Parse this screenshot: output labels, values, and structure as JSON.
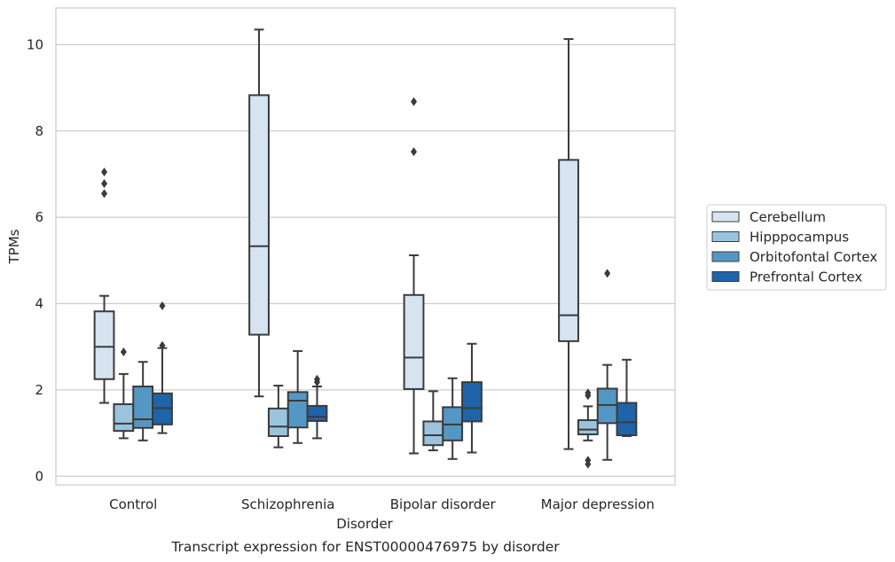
{
  "chart_data": {
    "type": "box",
    "xlabel": "Disorder",
    "ylabel": "TPMs",
    "caption": "Transcript expression for ENST00000476975 by disorder",
    "ylim": [
      -0.2,
      10.85
    ],
    "yticks": [
      0,
      2,
      4,
      6,
      8,
      10
    ],
    "grid": true,
    "legend_position": "right",
    "categories": [
      "Control",
      "Schizophrenia",
      "Bipolar disorder",
      "Major depression"
    ],
    "series": [
      {
        "name": "Cerebellum",
        "color": "#d6e4f2",
        "boxes": [
          {
            "whisker_low": 1.7,
            "q1": 2.25,
            "median": 3.0,
            "q3": 3.82,
            "whisker_high": 4.18,
            "outliers": [
              6.55,
              6.78,
              7.05
            ]
          },
          {
            "whisker_low": 1.85,
            "q1": 3.28,
            "median": 5.33,
            "q3": 8.83,
            "whisker_high": 10.35,
            "outliers": []
          },
          {
            "whisker_low": 0.53,
            "q1": 2.02,
            "median": 2.75,
            "q3": 4.2,
            "whisker_high": 5.12,
            "outliers": [
              7.52,
              8.68
            ]
          },
          {
            "whisker_low": 0.63,
            "q1": 3.13,
            "median": 3.73,
            "q3": 7.33,
            "whisker_high": 10.13,
            "outliers": []
          }
        ]
      },
      {
        "name": "Hipppocampus",
        "color": "#9ac4de",
        "boxes": [
          {
            "whisker_low": 0.88,
            "q1": 1.05,
            "median": 1.22,
            "q3": 1.67,
            "whisker_high": 2.37,
            "outliers": [
              2.88
            ]
          },
          {
            "whisker_low": 0.67,
            "q1": 0.93,
            "median": 1.15,
            "q3": 1.57,
            "whisker_high": 2.1,
            "outliers": []
          },
          {
            "whisker_low": 0.6,
            "q1": 0.72,
            "median": 0.95,
            "q3": 1.27,
            "whisker_high": 1.97,
            "outliers": []
          },
          {
            "whisker_low": 0.83,
            "q1": 0.97,
            "median": 1.08,
            "q3": 1.3,
            "whisker_high": 1.62,
            "outliers": [
              0.28,
              0.37,
              1.87,
              1.93
            ]
          }
        ]
      },
      {
        "name": "Orbitofontal Cortex",
        "color": "#5597c4",
        "boxes": [
          {
            "whisker_low": 0.83,
            "q1": 1.12,
            "median": 1.32,
            "q3": 2.08,
            "whisker_high": 2.65,
            "outliers": []
          },
          {
            "whisker_low": 0.77,
            "q1": 1.13,
            "median": 1.75,
            "q3": 1.95,
            "whisker_high": 2.9,
            "outliers": []
          },
          {
            "whisker_low": 0.4,
            "q1": 0.83,
            "median": 1.2,
            "q3": 1.6,
            "whisker_high": 2.27,
            "outliers": []
          },
          {
            "whisker_low": 0.38,
            "q1": 1.23,
            "median": 1.65,
            "q3": 2.03,
            "whisker_high": 2.58,
            "outliers": [
              4.7
            ]
          }
        ]
      },
      {
        "name": "Prefrontal Cortex",
        "color": "#1f63a8",
        "boxes": [
          {
            "whisker_low": 1.0,
            "q1": 1.2,
            "median": 1.58,
            "q3": 1.92,
            "whisker_high": 2.97,
            "outliers": [
              3.03,
              3.95
            ]
          },
          {
            "whisker_low": 0.88,
            "q1": 1.28,
            "median": 1.38,
            "q3": 1.63,
            "whisker_high": 2.08,
            "outliers": [
              2.18,
              2.25
            ]
          },
          {
            "whisker_low": 0.55,
            "q1": 1.27,
            "median": 1.58,
            "q3": 2.18,
            "whisker_high": 3.07,
            "outliers": []
          },
          {
            "whisker_low": 0.93,
            "q1": 0.95,
            "median": 1.25,
            "q3": 1.7,
            "whisker_high": 2.7,
            "outliers": []
          }
        ]
      }
    ]
  }
}
